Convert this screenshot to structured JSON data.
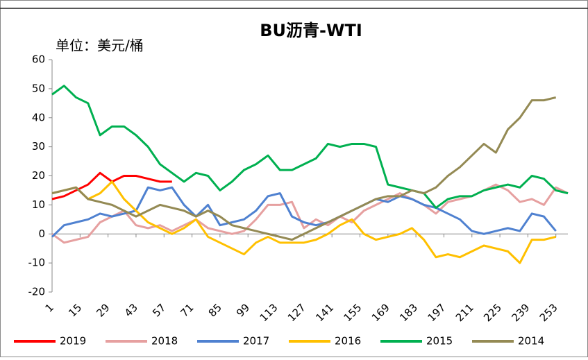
{
  "chart_data": {
    "type": "line",
    "title": "BU沥青-WTI",
    "subtitle": "单位：美元/桶",
    "x": [
      1,
      7,
      13,
      19,
      25,
      31,
      37,
      43,
      49,
      55,
      61,
      67,
      73,
      79,
      85,
      91,
      97,
      103,
      109,
      115,
      121,
      127,
      133,
      139,
      145,
      151,
      157,
      163,
      169,
      175,
      181,
      187,
      193,
      199,
      205,
      211,
      217,
      223,
      229,
      235,
      241,
      247,
      253,
      259
    ],
    "xlim": [
      1,
      259
    ],
    "xticks": [
      1,
      15,
      29,
      43,
      57,
      71,
      85,
      99,
      113,
      127,
      141,
      155,
      169,
      183,
      197,
      211,
      225,
      239,
      253
    ],
    "ylim": [
      -20,
      60
    ],
    "yticks": [
      -20,
      -10,
      0,
      10,
      20,
      30,
      40,
      50,
      60
    ],
    "legend": "bottom",
    "series": [
      {
        "name": "2019",
        "color": "#ff0000",
        "values": [
          12,
          13,
          15,
          17,
          21,
          18,
          20,
          20,
          19,
          18,
          18,
          null,
          null,
          null,
          null,
          null,
          null,
          null,
          null,
          null,
          null,
          null,
          null,
          null,
          null,
          null,
          null,
          null,
          null,
          null,
          null,
          null,
          null,
          null,
          null,
          null,
          null,
          null,
          null,
          null,
          null,
          null,
          null,
          null
        ]
      },
      {
        "name": "2018",
        "color": "#e6a0a0",
        "values": [
          0,
          -3,
          -2,
          -1,
          4,
          6,
          8,
          3,
          2,
          3,
          1,
          3,
          5,
          2,
          1,
          0,
          1,
          5,
          10,
          10,
          11,
          2,
          5,
          3,
          6,
          4,
          8,
          10,
          12,
          14,
          12,
          10,
          7,
          11,
          12,
          13,
          15,
          17,
          15,
          11,
          12,
          10,
          16,
          14
        ]
      },
      {
        "name": "2017",
        "color": "#4f81d0",
        "values": [
          -1,
          3,
          4,
          5,
          7,
          6,
          7,
          8,
          16,
          15,
          16,
          10,
          6,
          10,
          3,
          4,
          5,
          8,
          13,
          14,
          6,
          4,
          3,
          4,
          6,
          8,
          10,
          12,
          11,
          13,
          12,
          10,
          9,
          7,
          5,
          1,
          0,
          1,
          2,
          1,
          7,
          6,
          1,
          null
        ]
      },
      {
        "name": "2016",
        "color": "#ffc000",
        "values": [
          14,
          15,
          16,
          12,
          14,
          18,
          12,
          8,
          4,
          2,
          0,
          2,
          5,
          -1,
          -3,
          -5,
          -7,
          -3,
          -1,
          -3,
          -3,
          -3,
          -2,
          0,
          3,
          5,
          0,
          -2,
          -1,
          0,
          2,
          -2,
          -8,
          -7,
          -8,
          -6,
          -4,
          -5,
          -6,
          -10,
          -2,
          -2,
          -1,
          null
        ]
      },
      {
        "name": "2015",
        "color": "#00b050",
        "values": [
          48,
          51,
          47,
          45,
          34,
          37,
          37,
          34,
          30,
          24,
          21,
          18,
          21,
          20,
          15,
          18,
          22,
          24,
          27,
          22,
          22,
          24,
          26,
          31,
          30,
          31,
          31,
          30,
          17,
          16,
          15,
          14,
          9,
          12,
          13,
          13,
          15,
          16,
          17,
          16,
          20,
          19,
          15,
          14
        ]
      },
      {
        "name": "2014",
        "color": "#948a54",
        "values": [
          14,
          15,
          16,
          12,
          11,
          10,
          8,
          6,
          8,
          10,
          9,
          8,
          6,
          8,
          6,
          3,
          2,
          1,
          0,
          -1,
          -2,
          0,
          2,
          4,
          6,
          8,
          10,
          12,
          13,
          13,
          15,
          14,
          16,
          20,
          23,
          27,
          31,
          28,
          36,
          40,
          46,
          46,
          47,
          null
        ]
      }
    ]
  }
}
